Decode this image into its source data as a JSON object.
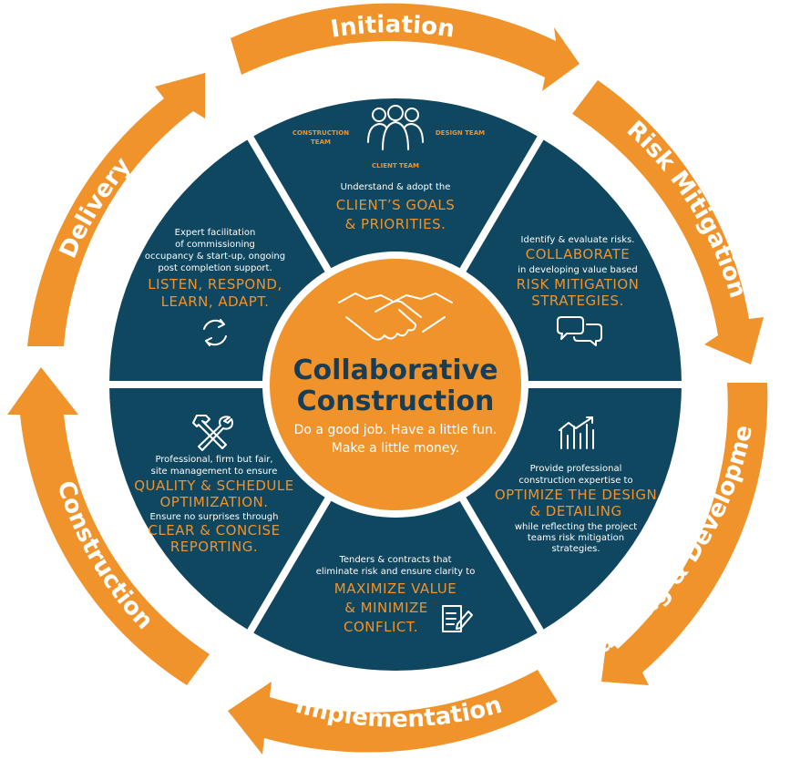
{
  "center": {
    "title_line1": "Collaborative",
    "title_line2": "Construction",
    "tagline_line1": "Do a good job. Have a little fun.",
    "tagline_line2": "Make a little money."
  },
  "phases": {
    "initiation": "Initiation",
    "risk_mitigation": "Risk Mitigation",
    "planning_development": "Planning & Development",
    "implementation": "Implementation",
    "construction": "Construction",
    "delivery": "Delivery"
  },
  "segments": {
    "top": {
      "team_construction_1": "CONSTRUCTION",
      "team_construction_2": "TEAM",
      "team_design": "DESIGN TEAM",
      "team_client": "CLIENT TEAM",
      "small_1": "Understand & adopt the",
      "big_1": "CLIENT’S GOALS",
      "big_2": "& PRIORITIES."
    },
    "top_right": {
      "small_1": "Identify & evaluate risks.",
      "big_1": "COLLABORATE",
      "small_2": "in developing value based",
      "big_2": "RISK MITIGATION",
      "big_3": "STRATEGIES."
    },
    "bottom_right": {
      "small_1": "Provide professional",
      "small_2": "construction expertise to",
      "big_1": "OPTIMIZE THE DESIGN",
      "big_2": "& DETAILING",
      "small_3": "while reflecting the project",
      "small_4": "teams risk mitigation",
      "small_5": "strategies."
    },
    "bottom": {
      "small_1": "Tenders & contracts that",
      "small_2": "eliminate risk and ensure clarity to",
      "big_1": "MAXIMIZE VALUE",
      "big_2": "& MINIMIZE",
      "big_3": "CONFLICT."
    },
    "bottom_left": {
      "small_1": "Professional, firm but fair,",
      "small_2": "site management to ensure",
      "big_1": "QUALITY & SCHEDULE",
      "big_2": "OPTIMIZATION.",
      "small_3": "Ensure no surprises through",
      "big_3": "CLEAR & CONCISE",
      "big_4": "REPORTING."
    },
    "top_left": {
      "small_1": "Expert facilitation",
      "small_2": "of commissioning",
      "small_3": "occupancy & start-up, ongoing",
      "small_4": "post completion support.",
      "big_1": "LISTEN, RESPOND,",
      "big_2": "LEARN, ADAPT."
    }
  },
  "icons": [
    "people-icon",
    "handshake-icon",
    "chat-bubbles-icon",
    "chart-icon",
    "document-pen-icon",
    "tools-icon",
    "refresh-icon"
  ],
  "colors": {
    "orange": "#f0932b",
    "navy": "#0f4660",
    "dark_text": "#173d57",
    "white": "#ffffff"
  }
}
